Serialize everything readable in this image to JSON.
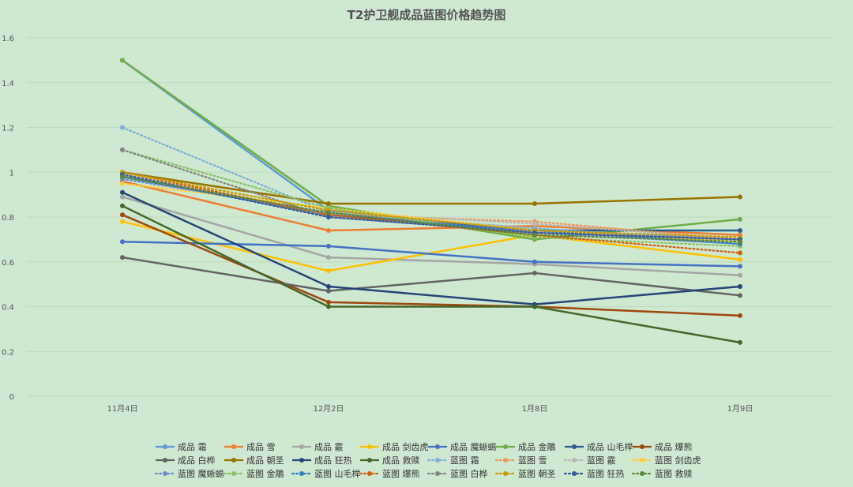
{
  "chart_data": {
    "type": "line",
    "title": "T2护卫舰成品蓝图价格趋势图",
    "xlabel": "",
    "ylabel": "",
    "categories": [
      "11月4日",
      "12月2日",
      "1月8日",
      "1月9日"
    ],
    "ylim": [
      0,
      1.6
    ],
    "yticks": [
      "0",
      "0.2",
      "0.4",
      "0.6",
      "0.8",
      "1",
      "1.2",
      "1.4",
      "1.6"
    ],
    "grid": true,
    "legend_position": "bottom",
    "series": [
      {
        "name": "成品 霜",
        "color": "#5b9bd5",
        "dash": false,
        "values": [
          1.5,
          0.83,
          0.74,
          0.7
        ]
      },
      {
        "name": "成品 雪",
        "color": "#ed7d31",
        "dash": false,
        "values": [
          0.96,
          0.74,
          0.76,
          0.72
        ]
      },
      {
        "name": "成品 霰",
        "color": "#a5a5a5",
        "dash": false,
        "values": [
          0.89,
          0.62,
          0.59,
          0.54
        ]
      },
      {
        "name": "成品 剑齿虎",
        "color": "#ffc000",
        "dash": false,
        "values": [
          0.78,
          0.56,
          0.72,
          0.61
        ]
      },
      {
        "name": "成品 魔蜥蜴",
        "color": "#4472c4",
        "dash": false,
        "values": [
          0.69,
          0.67,
          0.6,
          0.58
        ]
      },
      {
        "name": "成品 金鵰",
        "color": "#70ad47",
        "dash": false,
        "values": [
          1.5,
          0.85,
          0.7,
          0.79
        ]
      },
      {
        "name": "成品 山毛榉",
        "color": "#255e91",
        "dash": false,
        "values": [
          0.98,
          0.81,
          0.74,
          0.74
        ]
      },
      {
        "name": "成品 爆熊",
        "color": "#9e480e",
        "dash": false,
        "values": [
          0.81,
          0.42,
          0.4,
          0.36
        ]
      },
      {
        "name": "成品 白桦",
        "color": "#636363",
        "dash": false,
        "values": [
          0.62,
          0.47,
          0.55,
          0.45
        ]
      },
      {
        "name": "成品 朝圣",
        "color": "#997300",
        "dash": false,
        "values": [
          1.0,
          0.86,
          0.86,
          0.89
        ]
      },
      {
        "name": "成品 狂热",
        "color": "#264478",
        "dash": false,
        "values": [
          0.91,
          0.49,
          0.41,
          0.49
        ]
      },
      {
        "name": "成品 救赎",
        "color": "#43682b",
        "dash": false,
        "values": [
          0.85,
          0.4,
          0.4,
          0.24
        ]
      },
      {
        "name": "蓝图 霜",
        "color": "#7cafdd",
        "dash": true,
        "values": [
          1.2,
          0.82,
          0.75,
          0.69
        ]
      },
      {
        "name": "蓝图 雪",
        "color": "#f1975a",
        "dash": true,
        "values": [
          0.99,
          0.81,
          0.78,
          0.7
        ]
      },
      {
        "name": "蓝图 霰",
        "color": "#b7b7b7",
        "dash": true,
        "values": [
          0.98,
          0.82,
          0.77,
          0.7
        ]
      },
      {
        "name": "蓝图 剑齿虎",
        "color": "#ffcd33",
        "dash": true,
        "values": [
          0.95,
          0.84,
          0.74,
          0.69
        ]
      },
      {
        "name": "蓝图 魔蜥蜴",
        "color": "#698ed0",
        "dash": true,
        "values": [
          0.97,
          0.82,
          0.73,
          0.68
        ]
      },
      {
        "name": "蓝图 金鵰",
        "color": "#8cc168",
        "dash": true,
        "values": [
          1.1,
          0.84,
          0.71,
          0.67
        ]
      },
      {
        "name": "蓝图 山毛榉",
        "color": "#327dc2",
        "dash": true,
        "values": [
          0.99,
          0.8,
          0.74,
          0.68
        ]
      },
      {
        "name": "蓝图 爆熊",
        "color": "#d26012",
        "dash": true,
        "values": [
          1.0,
          0.81,
          0.72,
          0.64
        ]
      },
      {
        "name": "蓝图 白桦",
        "color": "#848484",
        "dash": true,
        "values": [
          1.1,
          0.8,
          0.73,
          0.7
        ]
      },
      {
        "name": "蓝图 朝圣",
        "color": "#cc9a00",
        "dash": true,
        "values": [
          1.0,
          0.83,
          0.74,
          0.71
        ]
      },
      {
        "name": "蓝图 狂热",
        "color": "#335aa1",
        "dash": true,
        "values": [
          0.99,
          0.8,
          0.73,
          0.7
        ]
      },
      {
        "name": "蓝图 救赎",
        "color": "#5a8a39",
        "dash": true,
        "values": [
          0.98,
          0.82,
          0.72,
          0.69
        ]
      }
    ]
  }
}
